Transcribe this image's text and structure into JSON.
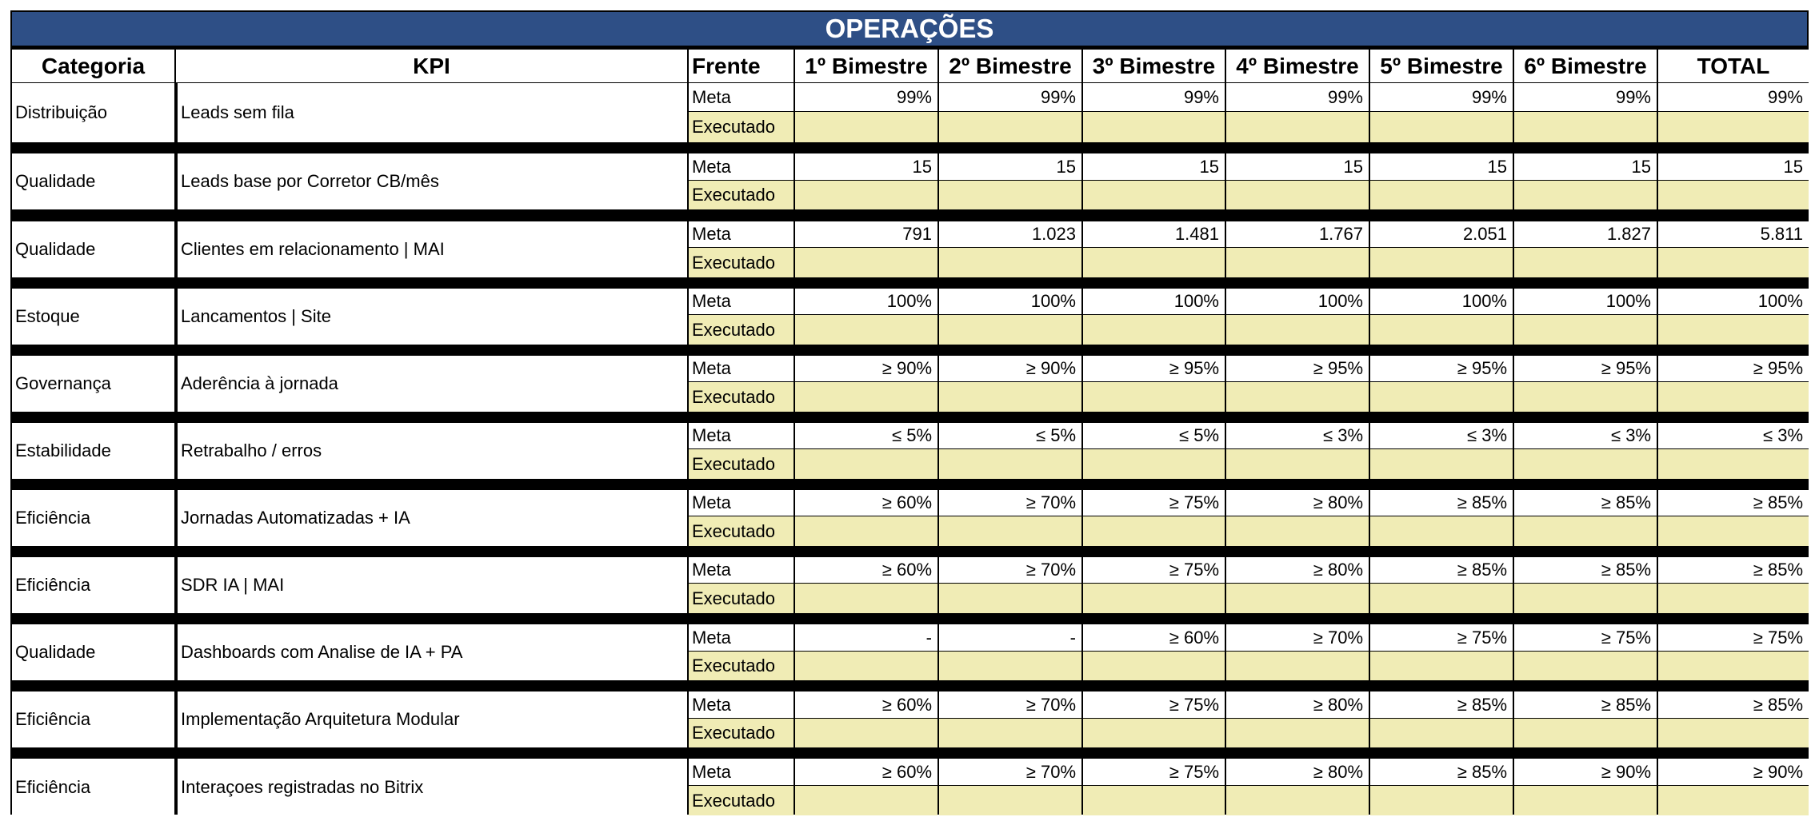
{
  "title": "OPERAÇÕES",
  "headers": [
    "Categoria",
    "KPI",
    "Frente",
    "1º Bimestre",
    "2º Bimestre",
    "3º Bimestre",
    "4º Bimestre",
    "5º Bimestre",
    "6º Bimestre",
    "TOTAL"
  ],
  "meta_label": "Meta",
  "executado_label": "Executado",
  "colors": {
    "header_bg": "#2e4f86",
    "header_text": "#ffffff",
    "executado_bg": "#f0ecb5",
    "grid": "#000000"
  },
  "rows": [
    {
      "categoria": "Distribuição",
      "kpi": "Leads sem fila",
      "meta": [
        "99%",
        "99%",
        "99%",
        "99%",
        "99%",
        "99%",
        "99%"
      ]
    },
    {
      "categoria": "Qualidade",
      "kpi": "Leads base por Corretor CB/mês",
      "meta": [
        "15",
        "15",
        "15",
        "15",
        "15",
        "15",
        "15"
      ]
    },
    {
      "categoria": "Qualidade",
      "kpi": "Clientes em relacionamento | MAI",
      "meta": [
        "791",
        "1.023",
        "1.481",
        "1.767",
        "2.051",
        "1.827",
        "5.811"
      ]
    },
    {
      "categoria": "Estoque",
      "kpi": "Lancamentos | Site",
      "meta": [
        "100%",
        "100%",
        "100%",
        "100%",
        "100%",
        "100%",
        "100%"
      ]
    },
    {
      "categoria": "Governança",
      "kpi": "Aderência à jornada",
      "meta": [
        "≥ 90%",
        "≥ 90%",
        "≥ 95%",
        "≥ 95%",
        "≥ 95%",
        "≥ 95%",
        "≥ 95%"
      ]
    },
    {
      "categoria": "Estabilidade",
      "kpi": "Retrabalho / erros",
      "meta": [
        "≤ 5%",
        "≤ 5%",
        "≤ 5%",
        "≤ 3%",
        "≤ 3%",
        "≤ 3%",
        "≤ 3%"
      ]
    },
    {
      "categoria": "Eficiência",
      "kpi": "Jornadas Automatizadas + IA",
      "meta": [
        "≥ 60%",
        "≥ 70%",
        "≥ 75%",
        "≥ 80%",
        "≥ 85%",
        "≥ 85%",
        "≥ 85%"
      ]
    },
    {
      "categoria": "Eficiência",
      "kpi": "SDR  IA | MAI",
      "meta": [
        "≥ 60%",
        "≥ 70%",
        "≥ 75%",
        "≥ 80%",
        "≥ 85%",
        "≥ 85%",
        "≥ 85%"
      ]
    },
    {
      "categoria": "Qualidade",
      "kpi": "Dashboards com Analise de IA + PA",
      "meta": [
        "-",
        "-",
        "≥ 60%",
        "≥ 70%",
        "≥ 75%",
        "≥ 75%",
        "≥ 75%"
      ]
    },
    {
      "categoria": "Eficiência",
      "kpi": "Implementação Arquitetura Modular",
      "meta": [
        "≥ 60%",
        "≥ 70%",
        "≥ 75%",
        "≥ 80%",
        "≥ 85%",
        "≥ 85%",
        "≥ 85%"
      ]
    },
    {
      "categoria": "Eficiência",
      "kpi": "Interaçoes registradas no Bitrix",
      "meta": [
        "≥ 60%",
        "≥ 70%",
        "≥ 75%",
        "≥ 80%",
        "≥ 85%",
        "≥ 90%",
        "≥ 90%"
      ]
    }
  ]
}
